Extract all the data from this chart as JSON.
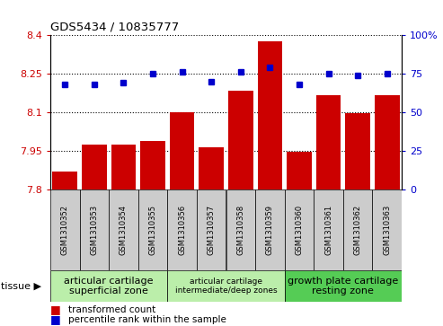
{
  "title": "GDS5434 / 10835777",
  "samples": [
    "GSM1310352",
    "GSM1310353",
    "GSM1310354",
    "GSM1310355",
    "GSM1310356",
    "GSM1310357",
    "GSM1310358",
    "GSM1310359",
    "GSM1310360",
    "GSM1310361",
    "GSM1310362",
    "GSM1310363"
  ],
  "bar_values": [
    7.87,
    7.975,
    7.975,
    7.99,
    8.1,
    7.965,
    8.185,
    8.375,
    7.945,
    8.165,
    8.095,
    8.165
  ],
  "dot_values": [
    68,
    68,
    69,
    75,
    76,
    70,
    76,
    79,
    68,
    75,
    74,
    75
  ],
  "ylim_left": [
    7.8,
    8.4
  ],
  "ylim_right": [
    0,
    100
  ],
  "yticks_left": [
    7.8,
    7.95,
    8.1,
    8.25,
    8.4
  ],
  "yticks_right": [
    0,
    25,
    50,
    75,
    100
  ],
  "ytick_labels_left": [
    "7.8",
    "7.95",
    "8.1",
    "8.25",
    "8.4"
  ],
  "ytick_labels_right": [
    "0",
    "25",
    "50",
    "75",
    "100%"
  ],
  "bar_color": "#cc0000",
  "dot_color": "#0000cc",
  "tissue_groups": [
    {
      "label": "articular cartilage\nsuperficial zone",
      "start": 0,
      "end": 4,
      "color": "#bbeeaa",
      "fontsize": 8
    },
    {
      "label": "articular cartilage\nintermediate/deep zones",
      "start": 4,
      "end": 8,
      "color": "#bbeeaa",
      "fontsize": 6.5
    },
    {
      "label": "growth plate cartilage\nresting zone",
      "start": 8,
      "end": 12,
      "color": "#55cc55",
      "fontsize": 8
    }
  ],
  "tissue_label": "tissue",
  "legend_bar_label": "transformed count",
  "legend_dot_label": "percentile rank within the sample",
  "bar_width": 0.85,
  "ybase": 7.8,
  "bg_color": "#ffffff",
  "sample_box_color": "#cccccc",
  "sample_label_fontsize": 6.0,
  "grid_linestyle": "dotted"
}
